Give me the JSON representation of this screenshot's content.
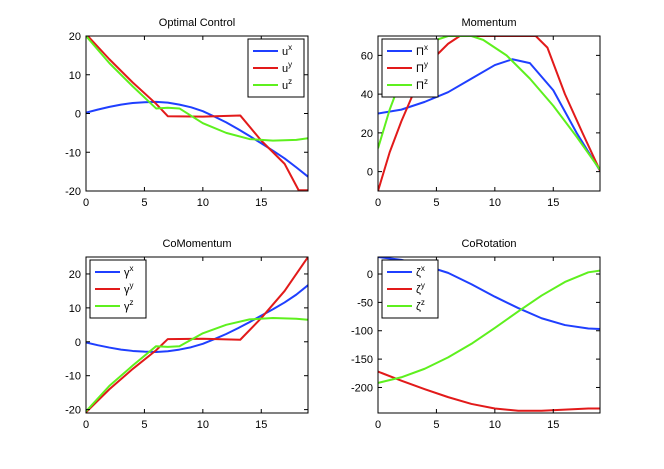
{
  "chart_data": [
    {
      "type": "line",
      "title": "Optimal Control",
      "xlim": [
        0,
        19
      ],
      "ylim": [
        -20,
        20
      ],
      "xticks": [
        0,
        5,
        10,
        15
      ],
      "yticks": [
        -20,
        -10,
        0,
        10,
        20
      ],
      "legend_position": "top-right",
      "series": [
        {
          "name": "u",
          "sup": "x",
          "color": "#1f3fff",
          "x": [
            0,
            1,
            2,
            3,
            4,
            5,
            6,
            7,
            8,
            9,
            10,
            11,
            12,
            13,
            14,
            15,
            16,
            17,
            18,
            19
          ],
          "y": [
            0.2,
            1.0,
            1.7,
            2.3,
            2.7,
            2.9,
            3.0,
            2.8,
            2.3,
            1.6,
            0.6,
            -0.8,
            -2.3,
            -4.0,
            -5.8,
            -7.7,
            -9.6,
            -11.6,
            -13.9,
            -16.3
          ]
        },
        {
          "name": "u",
          "sup": "y",
          "color": "#e21a1a",
          "x": [
            0,
            2,
            4,
            6,
            7,
            10,
            13.2,
            15,
            17,
            18.2,
            19
          ],
          "y": [
            20.5,
            14.0,
            8.0,
            2.5,
            -0.7,
            -0.8,
            -0.5,
            -7.0,
            -13.0,
            -19.8,
            -19.8
          ]
        },
        {
          "name": "u",
          "sup": "z",
          "color": "#5ef01e",
          "x": [
            0,
            2,
            4,
            6,
            7,
            8,
            10,
            12,
            14,
            16,
            18,
            19
          ],
          "y": [
            20.0,
            13.0,
            7.0,
            1.3,
            1.5,
            1.3,
            -2.5,
            -5.0,
            -6.6,
            -7.0,
            -6.8,
            -6.4
          ]
        }
      ]
    },
    {
      "type": "line",
      "title": "Momentum",
      "xlim": [
        0,
        19
      ],
      "ylim": [
        -10,
        70
      ],
      "xticks": [
        0,
        5,
        10,
        15
      ],
      "yticks": [
        0,
        20,
        40,
        60
      ],
      "legend_position": "top-left",
      "series": [
        {
          "name": "Π",
          "sup": "x",
          "color": "#1f3fff",
          "x": [
            0,
            2,
            4,
            6,
            8,
            10,
            11.5,
            13,
            15,
            17,
            19
          ],
          "y": [
            30.0,
            32.0,
            36.0,
            41.0,
            48.0,
            55.0,
            58.0,
            56.0,
            42.0,
            20.0,
            0.5
          ]
        },
        {
          "name": "Π",
          "sup": "y",
          "color": "#e21a1a",
          "x": [
            0,
            1,
            2,
            3,
            4,
            5,
            6,
            7,
            8,
            10,
            12,
            13.5,
            14.5,
            16,
            17.5,
            19
          ],
          "y": [
            -10.0,
            10.0,
            26.0,
            40.0,
            52.0,
            60.0,
            66.0,
            70.0,
            70.0,
            70.0,
            70.0,
            70.0,
            64.0,
            40.0,
            20.0,
            0.5
          ]
        },
        {
          "name": "Π",
          "sup": "z",
          "color": "#5ef01e",
          "x": [
            0,
            1,
            2,
            3,
            4,
            5,
            6,
            7,
            8,
            9,
            11,
            13,
            15,
            17,
            19
          ],
          "y": [
            12.0,
            32.0,
            48.0,
            58.0,
            64.0,
            68.0,
            70.0,
            70.0,
            70.0,
            68.0,
            60.0,
            48.0,
            34.0,
            18.0,
            1.0
          ]
        }
      ]
    },
    {
      "type": "line",
      "title": "CoMomentum",
      "xlim": [
        0,
        19
      ],
      "ylim": [
        -21,
        25
      ],
      "xticks": [
        0,
        5,
        10,
        15
      ],
      "yticks": [
        -20,
        -10,
        0,
        10,
        20
      ],
      "legend_position": "top-left",
      "series": [
        {
          "name": "γ",
          "sup": "x",
          "color": "#1f3fff",
          "x": [
            0,
            1,
            2,
            3,
            4,
            5,
            6,
            7,
            8,
            9,
            10,
            11,
            12,
            13,
            14,
            15,
            16,
            17,
            18,
            19
          ],
          "y": [
            -0.2,
            -1.0,
            -1.7,
            -2.3,
            -2.7,
            -2.9,
            -3.0,
            -2.8,
            -2.3,
            -1.6,
            -0.6,
            0.8,
            2.3,
            4.0,
            5.8,
            7.7,
            9.6,
            11.6,
            13.9,
            16.7
          ]
        },
        {
          "name": "γ",
          "sup": "y",
          "color": "#e21a1a",
          "x": [
            0,
            2,
            4,
            6,
            7,
            10,
            13.2,
            15,
            17,
            19
          ],
          "y": [
            -20.8,
            -14.0,
            -8.0,
            -2.5,
            0.8,
            0.9,
            0.6,
            7.0,
            15.0,
            25.0
          ]
        },
        {
          "name": "γ",
          "sup": "z",
          "color": "#5ef01e",
          "x": [
            0,
            2,
            4,
            6,
            7,
            8,
            10,
            12,
            14,
            16,
            18,
            19
          ],
          "y": [
            -20.5,
            -13.0,
            -7.0,
            -1.3,
            -1.5,
            -1.3,
            2.5,
            5.0,
            6.6,
            7.0,
            6.8,
            6.5
          ]
        }
      ]
    },
    {
      "type": "line",
      "title": "CoRotation",
      "xlim": [
        0,
        19
      ],
      "ylim": [
        -245,
        30
      ],
      "xticks": [
        0,
        5,
        10,
        15
      ],
      "yticks": [
        -200,
        -150,
        -100,
        -50,
        0
      ],
      "legend_position": "top-left",
      "series": [
        {
          "name": "ζ",
          "sup": "x",
          "color": "#1f3fff",
          "x": [
            0,
            2,
            4,
            6,
            8,
            10,
            12,
            14,
            16,
            18,
            19
          ],
          "y": [
            30.0,
            25.0,
            15.0,
            2.0,
            -18.0,
            -40.0,
            -60.0,
            -78.0,
            -90.0,
            -96.0,
            -97.0
          ]
        },
        {
          "name": "ζ",
          "sup": "y",
          "color": "#e21a1a",
          "x": [
            0,
            2,
            4,
            6,
            8,
            10,
            12,
            14,
            16,
            18,
            19
          ],
          "y": [
            -172.0,
            -188.0,
            -203.0,
            -217.0,
            -229.0,
            -237.0,
            -241.0,
            -241.0,
            -239.0,
            -237.0,
            -237.0
          ]
        },
        {
          "name": "ζ",
          "sup": "z",
          "color": "#5ef01e",
          "x": [
            0,
            2,
            4,
            6,
            8,
            10,
            12,
            14,
            16,
            18,
            19
          ],
          "y": [
            -192.0,
            -182.0,
            -167.0,
            -147.0,
            -123.0,
            -95.0,
            -66.0,
            -38.0,
            -14.0,
            3.0,
            6.0
          ]
        }
      ]
    }
  ]
}
